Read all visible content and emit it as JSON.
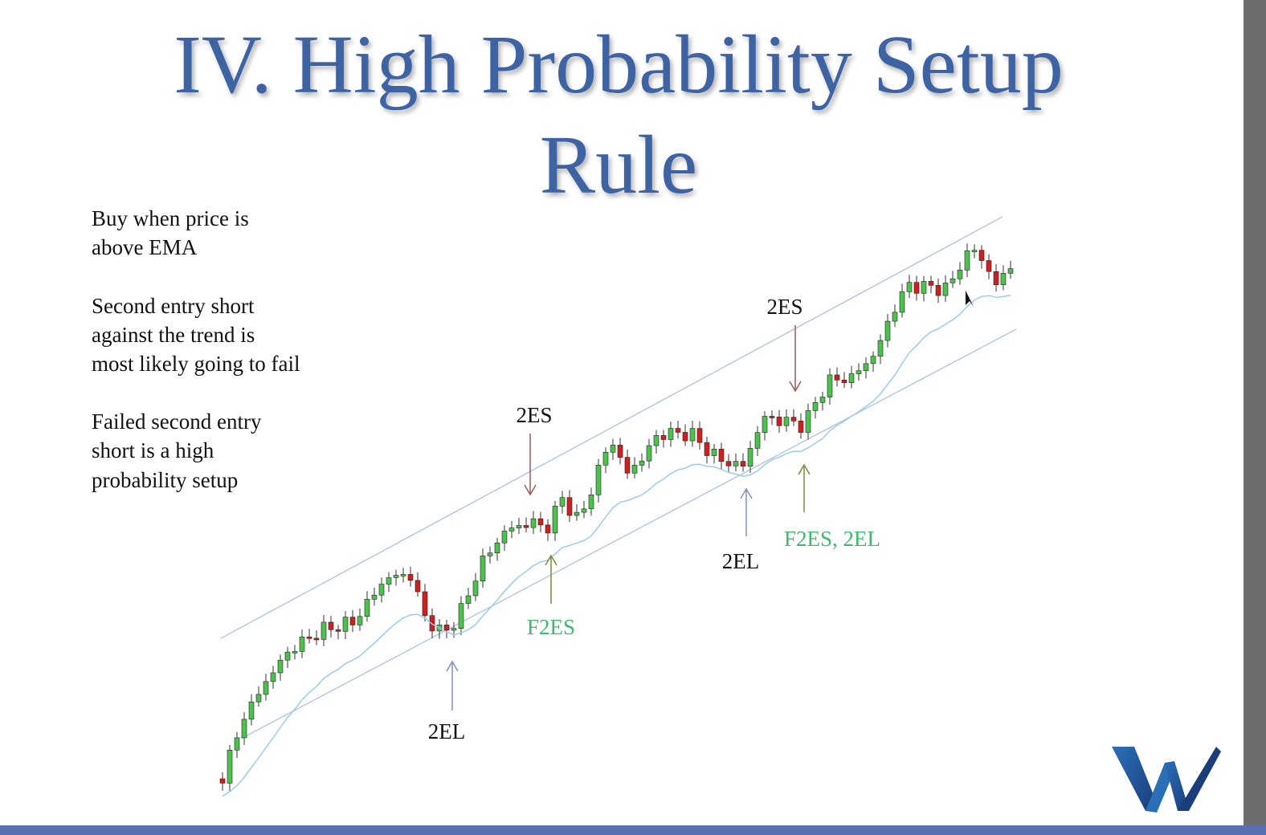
{
  "title": {
    "line1": "IV. High Probability Setup",
    "line2": "Rule"
  },
  "notes": [
    [
      "Buy when price is",
      "above EMA"
    ],
    [
      "Second entry short",
      "against the trend is",
      "most likely going to fail"
    ],
    [
      "Failed second entry",
      "short is a high",
      "probability setup"
    ]
  ],
  "annotations": [
    "2ES",
    "F2ES",
    "2EL",
    "2ES",
    "2EL",
    "F2ES, 2EL"
  ]
}
